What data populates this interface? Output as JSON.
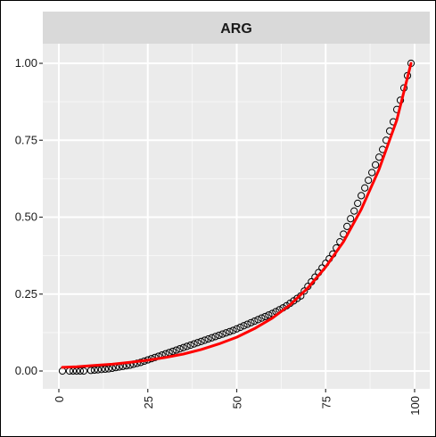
{
  "chart_data": {
    "type": "scatter",
    "title": "",
    "facet_label": "ARG",
    "xlabel": "",
    "ylabel": "",
    "xlim": [
      0,
      100
    ],
    "ylim": [
      0,
      1
    ],
    "x_ticks": [
      0,
      25,
      50,
      75,
      100
    ],
    "x_tick_labels": [
      "0",
      "25",
      "50",
      "75",
      "100"
    ],
    "y_ticks": [
      0,
      0.25,
      0.5,
      0.75,
      1
    ],
    "y_tick_labels": [
      "0.00",
      "0.25",
      "0.50",
      "0.75",
      "1.00"
    ],
    "grid": true,
    "legend": "none",
    "points": {
      "x": [
        1,
        3,
        4,
        5,
        6,
        7,
        9,
        10,
        11,
        12,
        13,
        14,
        15,
        16,
        17,
        18,
        19,
        20,
        21,
        22,
        23,
        24,
        25,
        26,
        27,
        28,
        29,
        30,
        31,
        32,
        33,
        34,
        35,
        36,
        37,
        38,
        39,
        40,
        41,
        42,
        43,
        44,
        45,
        46,
        47,
        48,
        49,
        50,
        51,
        52,
        53,
        54,
        55,
        56,
        57,
        58,
        59,
        60,
        61,
        62,
        63,
        64,
        65,
        66,
        67,
        68,
        69,
        70,
        71,
        72,
        73,
        74,
        75,
        76,
        77,
        78,
        79,
        80,
        81,
        82,
        83,
        84,
        85,
        86,
        87,
        88,
        89,
        90,
        91,
        92,
        93,
        94,
        95,
        96,
        97,
        98,
        99
      ],
      "y": [
        0.0,
        0.0,
        0.0,
        0.0,
        0.0,
        0.0,
        0.002,
        0.003,
        0.004,
        0.005,
        0.006,
        0.007,
        0.009,
        0.011,
        0.013,
        0.015,
        0.017,
        0.019,
        0.022,
        0.025,
        0.028,
        0.032,
        0.036,
        0.04,
        0.044,
        0.048,
        0.052,
        0.056,
        0.06,
        0.064,
        0.068,
        0.072,
        0.076,
        0.08,
        0.084,
        0.088,
        0.092,
        0.096,
        0.1,
        0.104,
        0.108,
        0.112,
        0.116,
        0.12,
        0.124,
        0.128,
        0.132,
        0.137,
        0.142,
        0.147,
        0.152,
        0.157,
        0.162,
        0.167,
        0.172,
        0.177,
        0.182,
        0.187,
        0.193,
        0.199,
        0.205,
        0.212,
        0.22,
        0.228,
        0.236,
        0.244,
        0.26,
        0.275,
        0.29,
        0.305,
        0.32,
        0.335,
        0.35,
        0.365,
        0.38,
        0.4,
        0.42,
        0.445,
        0.47,
        0.495,
        0.52,
        0.545,
        0.57,
        0.595,
        0.62,
        0.645,
        0.67,
        0.695,
        0.72,
        0.75,
        0.78,
        0.81,
        0.85,
        0.88,
        0.92,
        0.96,
        1.0
      ],
      "marker": "open-circle",
      "color": "#000000"
    },
    "fit_line": {
      "x": [
        1,
        5,
        10,
        15,
        20,
        25,
        30,
        35,
        40,
        45,
        50,
        55,
        60,
        65,
        70,
        75,
        80,
        85,
        90,
        95,
        99
      ],
      "y": [
        0.012,
        0.014,
        0.018,
        0.022,
        0.028,
        0.035,
        0.044,
        0.055,
        0.07,
        0.088,
        0.11,
        0.138,
        0.172,
        0.215,
        0.27,
        0.338,
        0.42,
        0.525,
        0.655,
        0.815,
        1.0
      ],
      "color": "#ff0000"
    },
    "colors": {
      "panel_background": "#ebebeb",
      "strip_background": "#d9d9d9",
      "grid_major": "#ffffff"
    }
  }
}
